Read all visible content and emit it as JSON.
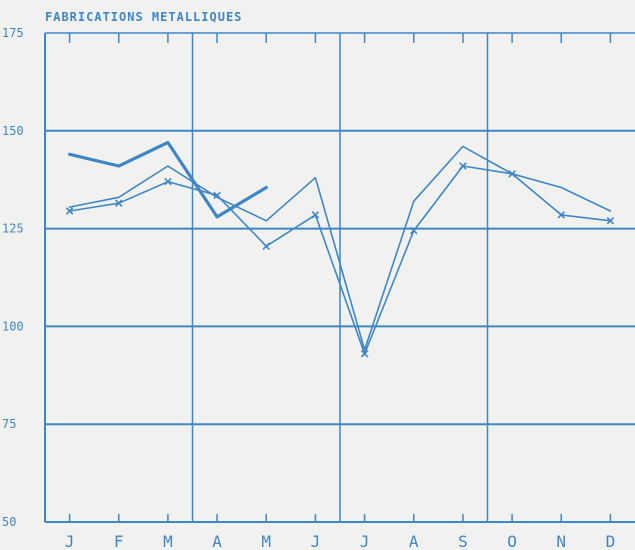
{
  "colors": {
    "ink": "#3f86c6",
    "background": "#f1f2ef"
  },
  "chart_data": {
    "type": "line",
    "title": "FABRICATIONS METALLIQUES",
    "xlabel": "",
    "ylabel": "",
    "categories": [
      "J",
      "F",
      "M",
      "A",
      "M",
      "J",
      "J",
      "A",
      "S",
      "O",
      "N",
      "D"
    ],
    "ylim": [
      50,
      175
    ],
    "yticks": [
      50,
      75,
      100,
      125,
      150,
      175
    ],
    "grid": true,
    "legend": "none",
    "series": [
      {
        "style": "thick",
        "markers": false,
        "values": [
          144,
          141,
          147,
          128,
          135.5,
          null,
          null,
          null,
          null,
          null,
          null,
          null
        ]
      },
      {
        "style": "thin",
        "markers": false,
        "values": [
          130.5,
          133,
          141,
          133,
          127,
          138,
          94,
          132,
          146,
          139,
          135.5,
          129.5
        ]
      },
      {
        "style": "thin",
        "markers": true,
        "values": [
          129.5,
          131.5,
          137,
          133.5,
          120.5,
          128.5,
          93,
          124.5,
          141,
          139,
          128.5,
          127
        ]
      }
    ]
  }
}
